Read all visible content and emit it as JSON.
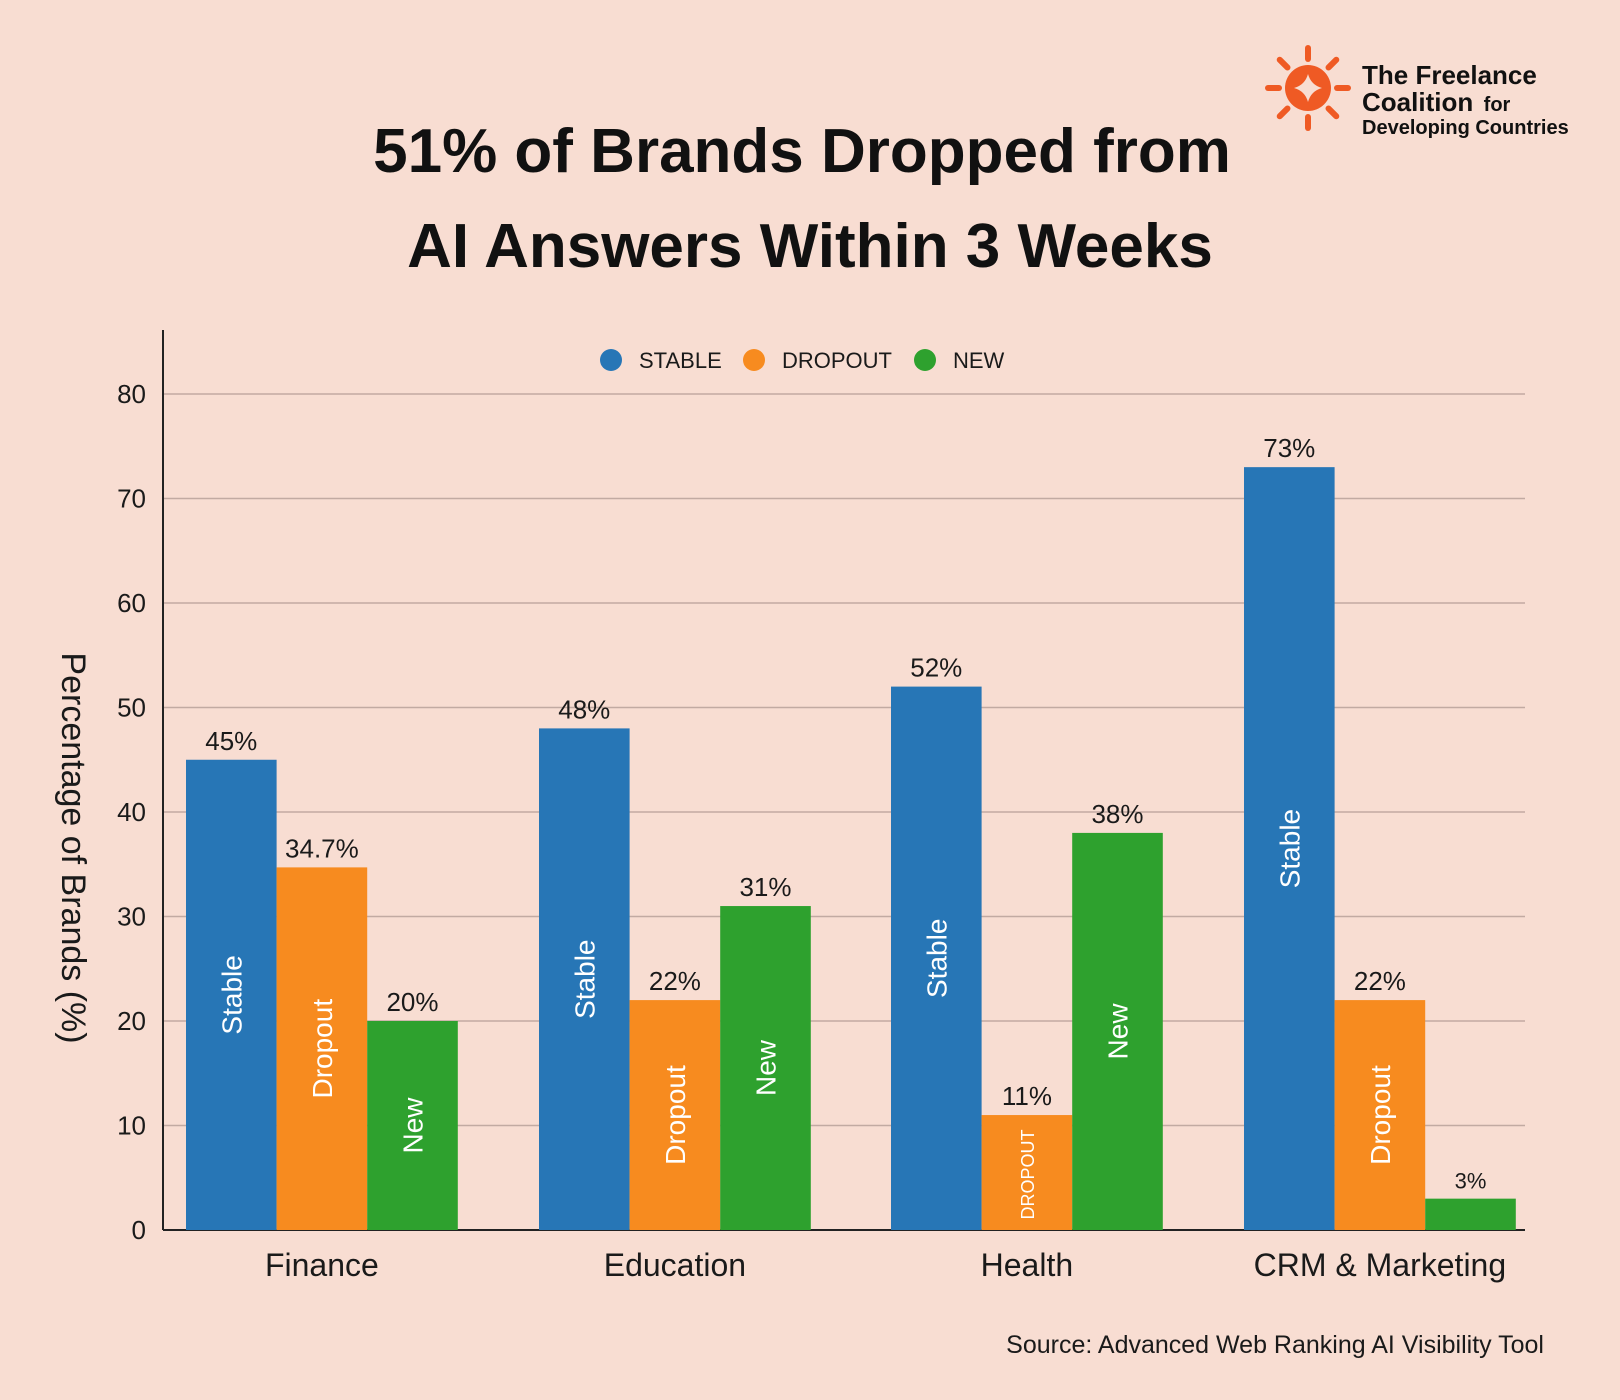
{
  "title_line1": "51% of Brands Dropped from",
  "title_line2": "AI Answers Within 3 Weeks",
  "logo": {
    "line1": "The Freelance",
    "line2_bold": "Coalition",
    "line2_rest": "for",
    "line3": "Developing Countries",
    "color": "#ef5a24"
  },
  "source": "Source: Advanced Web Ranking AI Visibility Tool",
  "chart_data": {
    "type": "bar",
    "categories": [
      "Finance",
      "Education",
      "Health",
      "CRM & Marketing"
    ],
    "series": [
      {
        "name": "STABLE",
        "color": "#2776b6",
        "values": [
          45,
          48,
          52,
          73
        ],
        "value_labels": [
          "45%",
          "48%",
          "52%",
          "73%"
        ],
        "bar_labels": [
          "Stable",
          "Stable",
          "Stable",
          "Stable"
        ]
      },
      {
        "name": "DROPOUT",
        "color": "#f78b1f",
        "values": [
          34.7,
          22,
          11,
          22
        ],
        "value_labels": [
          "34.7%",
          "22%",
          "11%",
          "22%"
        ],
        "bar_labels": [
          "Dropout",
          "Dropout",
          "DROPOUT",
          "Dropout"
        ]
      },
      {
        "name": "NEW",
        "color": "#2ea12e",
        "values": [
          20,
          31,
          38,
          3
        ],
        "value_labels": [
          "20%",
          "31%",
          "38%",
          "3%"
        ],
        "bar_labels": [
          "New",
          "New",
          "New",
          ""
        ]
      }
    ],
    "ylabel": "Percentage of Brands (%)",
    "xlabel": "",
    "ylim": [
      0,
      86
    ],
    "yticks": [
      0,
      10,
      20,
      30,
      40,
      50,
      60,
      70,
      80
    ],
    "grid": true,
    "legend": "top-center"
  }
}
